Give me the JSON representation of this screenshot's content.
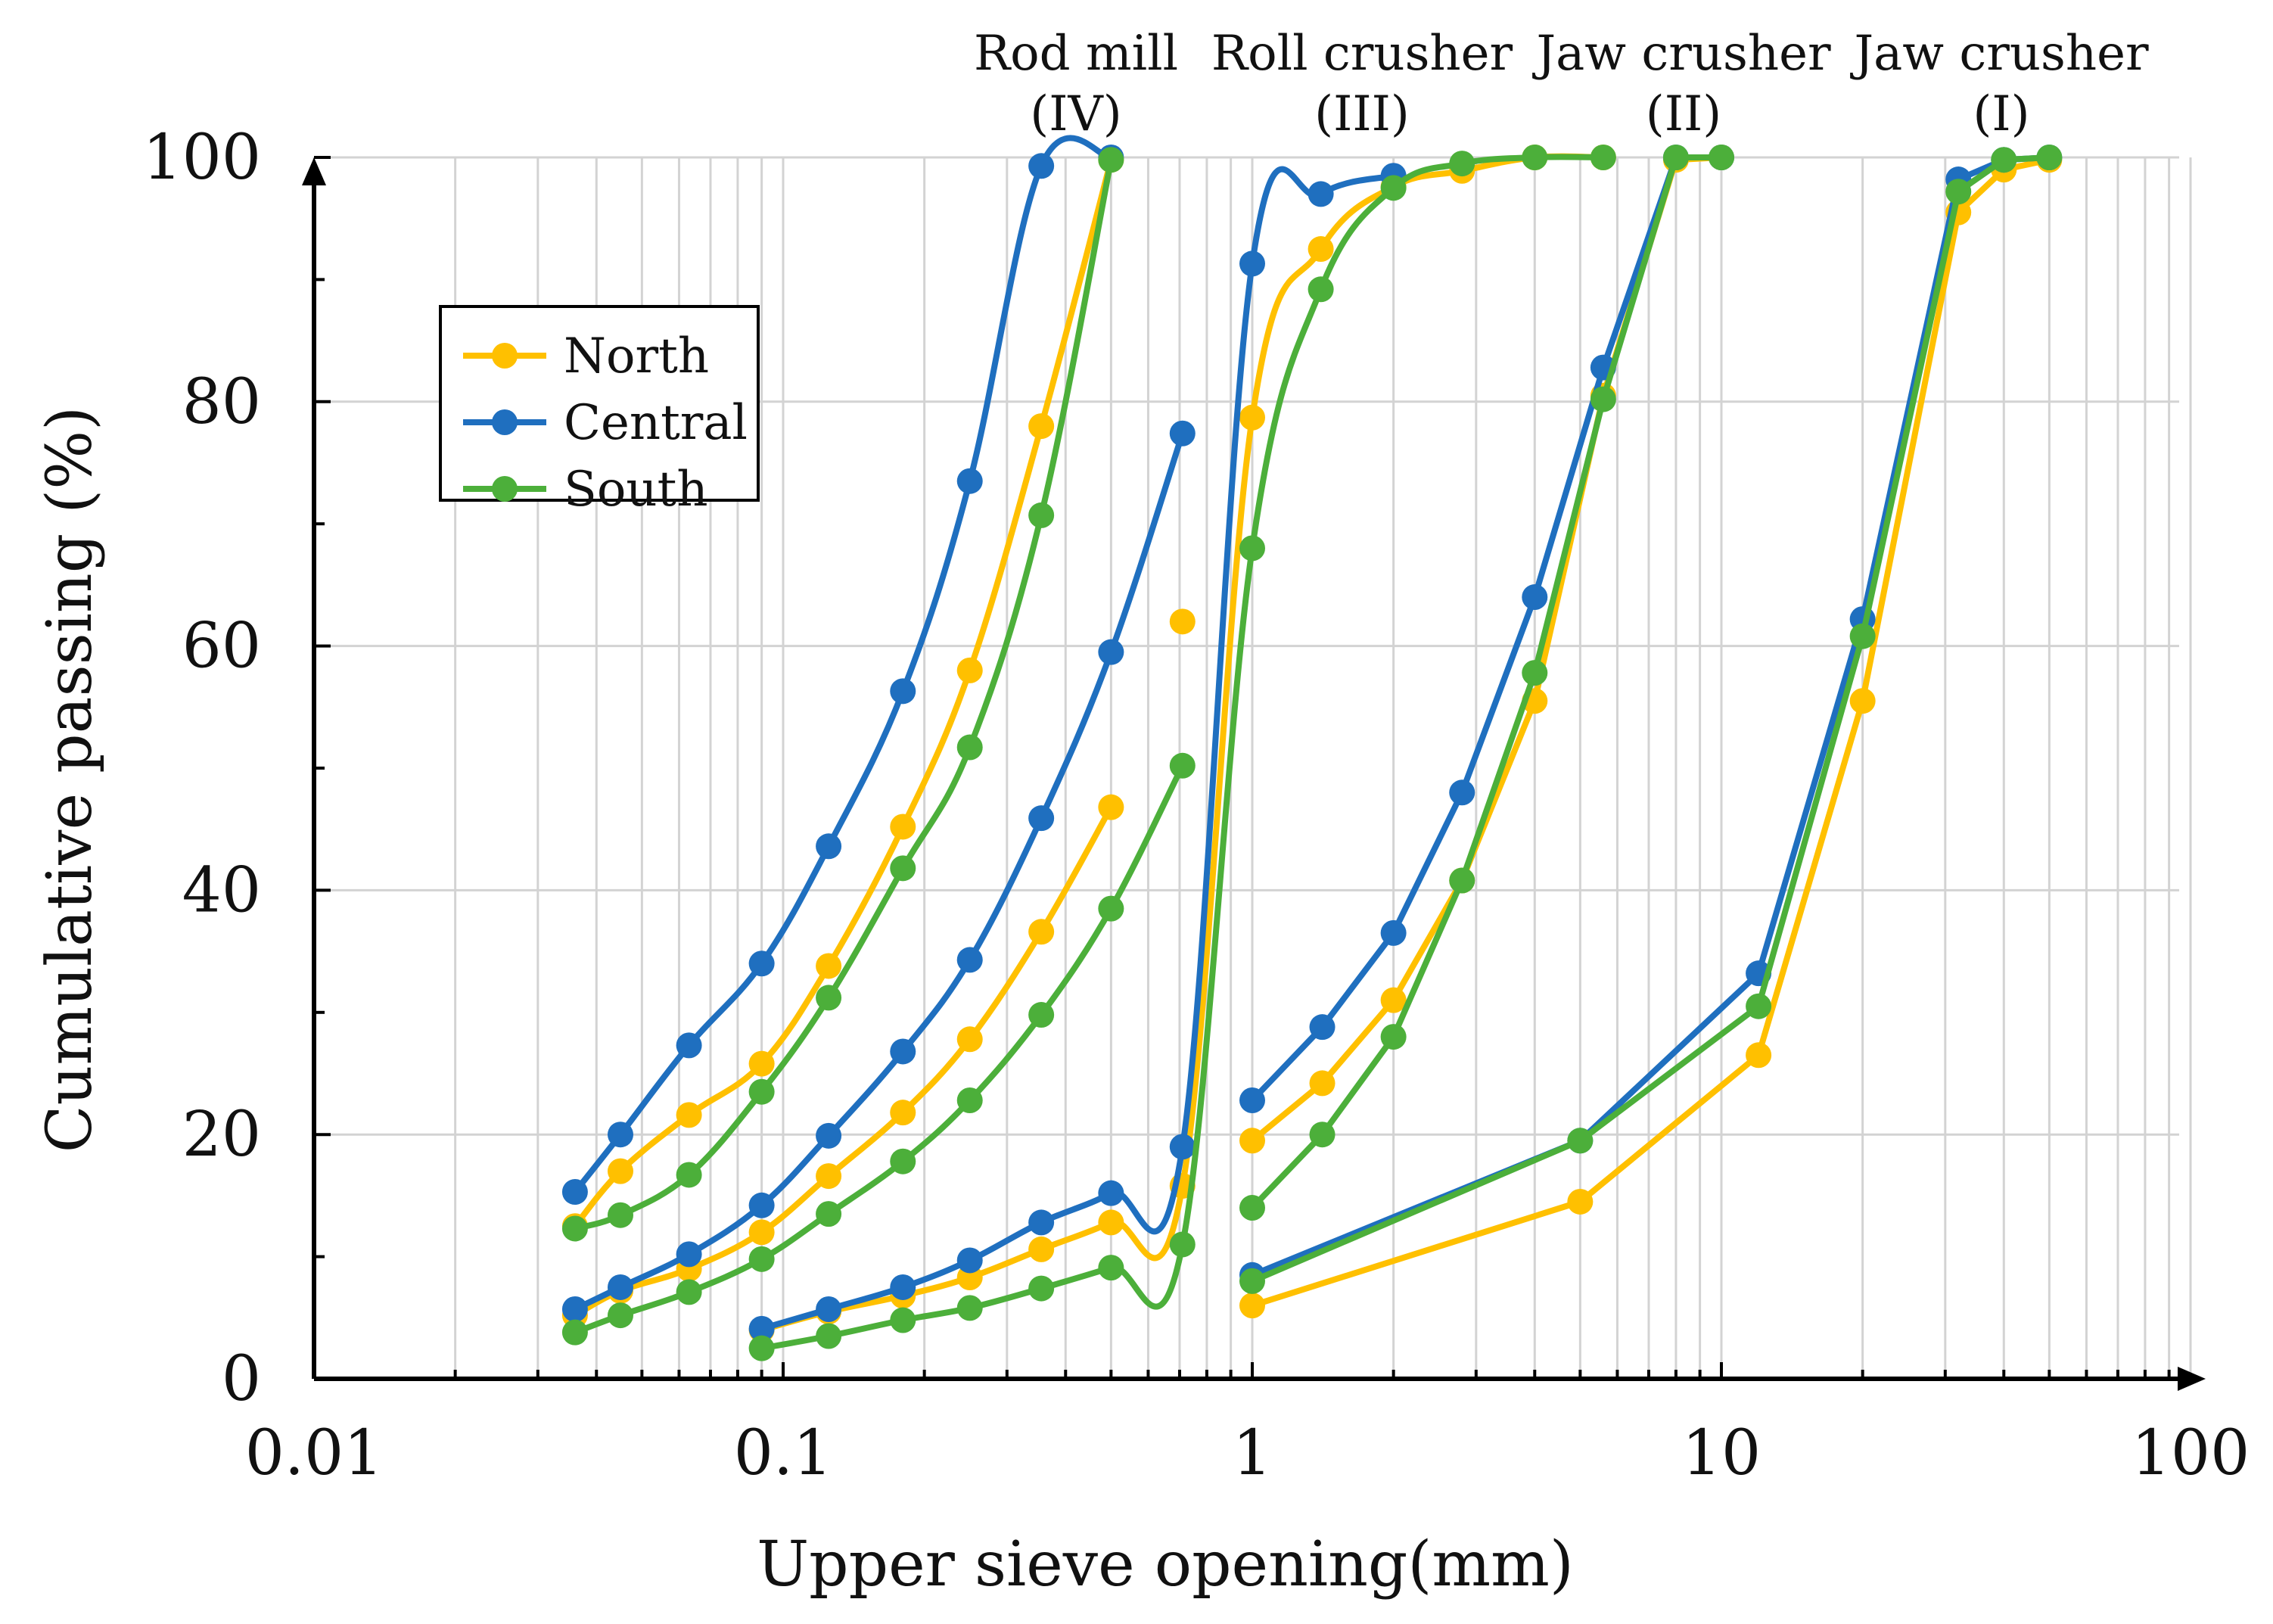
{
  "chart_data": {
    "type": "line",
    "title": "",
    "xlabel": "Upper sieve opening(mm)",
    "ylabel": "Cumulative passing (%)",
    "x_scale": "log",
    "xlim": [
      0.01,
      100
    ],
    "ylim": [
      0,
      100
    ],
    "x_ticks": [
      0.01,
      0.1,
      1,
      10,
      100
    ],
    "x_tick_labels": [
      "0.01",
      "0.1",
      "1",
      "10",
      "100"
    ],
    "y_ticks": [
      0,
      20,
      40,
      60,
      80,
      100
    ],
    "y_tick_labels": [
      "0",
      "20",
      "40",
      "60",
      "80",
      "100"
    ],
    "grid": true,
    "legend_position": "upper-left",
    "stage_labels": [
      {
        "line1": "Rod mill",
        "line2": "(IV)",
        "x": 0.38
      },
      {
        "line1": "Roll crusher",
        "line2": "(III)",
        "x": 2.8
      },
      {
        "line1": "Jaw crusher",
        "line2": "(II)",
        "x": 10
      },
      {
        "line1": "Jaw crusher",
        "line2": "(I)",
        "x": 50
      }
    ],
    "series": [
      {
        "name": "North",
        "color": "#FFC000",
        "curves": [
          {
            "stage": "I",
            "x": [
              1,
              5,
              12,
              20,
              32,
              40,
              50
            ],
            "y": [
              6,
              14.5,
              26.5,
              55.5,
              95.5,
              99,
              99.8
            ]
          },
          {
            "stage": "II",
            "x": [
              1,
              1.41,
              2,
              2.8,
              4,
              5.6,
              8,
              10
            ],
            "y": [
              19.5,
              24.2,
              31,
              40.8,
              55.5,
              80.5,
              99.8,
              100
            ]
          },
          {
            "stage": "III",
            "x": [
              0.09,
              0.125,
              0.18,
              0.25,
              0.355,
              0.5,
              0.71,
              1,
              1.4,
              2,
              2.8,
              4,
              5.6
            ],
            "y": [
              4,
              5.5,
              6.8,
              8.3,
              10.6,
              12.8,
              15.8,
              78.7,
              92.5,
              97.6,
              98.9,
              100,
              100
            ]
          },
          {
            "stage": "IV",
            "x": [
              0.036,
              0.045,
              0.063,
              0.09,
              0.125,
              0.18,
              0.25,
              0.355,
              0.5
            ],
            "y": [
              5.2,
              7.2,
              9,
              12,
              16.6,
              21.8,
              27.8,
              36.6,
              46.8
            ]
          },
          {
            "stage": "IV-fine",
            "x": [
              0.036,
              0.045,
              0.063,
              0.09,
              0.125,
              0.18,
              0.25,
              0.355,
              0.5
            ],
            "y": [
              12.5,
              17,
              21.6,
              25.8,
              33.8,
              45.2,
              58,
              78,
              99.8
            ]
          },
          {
            "stage": "III-mid",
            "x": [
              0.71
            ],
            "y": [
              62
            ]
          }
        ]
      },
      {
        "name": "Central",
        "color": "#1F6FBF",
        "curves": [
          {
            "stage": "I",
            "x": [
              1,
              5,
              12,
              20,
              32,
              40,
              50
            ],
            "y": [
              8.5,
              19.5,
              33.2,
              62.2,
              98.2,
              99.8,
              100
            ]
          },
          {
            "stage": "II",
            "x": [
              1,
              1.41,
              2,
              2.8,
              4,
              5.6,
              8,
              10
            ],
            "y": [
              22.8,
              28.8,
              36.5,
              48,
              64,
              82.8,
              100,
              100
            ]
          },
          {
            "stage": "III",
            "x": [
              0.09,
              0.125,
              0.18,
              0.25,
              0.355,
              0.5,
              0.71,
              1,
              1.4,
              2
            ],
            "y": [
              4.1,
              5.7,
              7.5,
              9.7,
              12.8,
              15.2,
              19,
              91.3,
              97,
              98.5
            ]
          },
          {
            "stage": "IV",
            "x": [
              0.036,
              0.045,
              0.063,
              0.09,
              0.125,
              0.18,
              0.25,
              0.355,
              0.5,
              0.71
            ],
            "y": [
              5.7,
              7.5,
              10.2,
              14.2,
              19.9,
              26.8,
              34.3,
              45.9,
              59.5,
              77.4
            ]
          },
          {
            "stage": "IV-fine",
            "x": [
              0.036,
              0.045,
              0.063,
              0.09,
              0.125,
              0.18,
              0.25,
              0.355,
              0.5
            ],
            "y": [
              15.3,
              20,
              27.3,
              34,
              43.6,
              56.3,
              73.5,
              99.3,
              100
            ]
          }
        ]
      },
      {
        "name": "South",
        "color": "#4CAF3A",
        "curves": [
          {
            "stage": "I",
            "x": [
              1,
              5,
              12,
              20,
              32,
              40,
              50
            ],
            "y": [
              8,
              19.5,
              30.5,
              60.8,
              97.2,
              99.8,
              100
            ]
          },
          {
            "stage": "II",
            "x": [
              1,
              1.41,
              2,
              2.8,
              4,
              5.6,
              8,
              10
            ],
            "y": [
              14,
              20,
              28,
              40.8,
              57.8,
              80.2,
              100,
              100
            ]
          },
          {
            "stage": "III",
            "x": [
              0.09,
              0.125,
              0.18,
              0.25,
              0.355,
              0.5,
              0.71,
              1,
              1.4,
              2,
              2.8,
              4,
              5.6
            ],
            "y": [
              2.5,
              3.5,
              4.8,
              5.8,
              7.4,
              9.1,
              11,
              68,
              89.2,
              97.5,
              99.5,
              100,
              100
            ]
          },
          {
            "stage": "IV",
            "x": [
              0.036,
              0.045,
              0.063,
              0.09,
              0.125,
              0.18,
              0.25,
              0.355,
              0.5,
              0.71
            ],
            "y": [
              3.8,
              5.2,
              7.1,
              9.8,
              13.5,
              17.8,
              22.8,
              29.8,
              38.5,
              50.2
            ]
          },
          {
            "stage": "IV-fine",
            "x": [
              0.036,
              0.045,
              0.063,
              0.09,
              0.125,
              0.18,
              0.25,
              0.355,
              0.5
            ],
            "y": [
              12.3,
              13.4,
              16.7,
              23.5,
              31.2,
              41.8,
              51.7,
              70.7,
              99.8
            ]
          }
        ]
      }
    ]
  }
}
